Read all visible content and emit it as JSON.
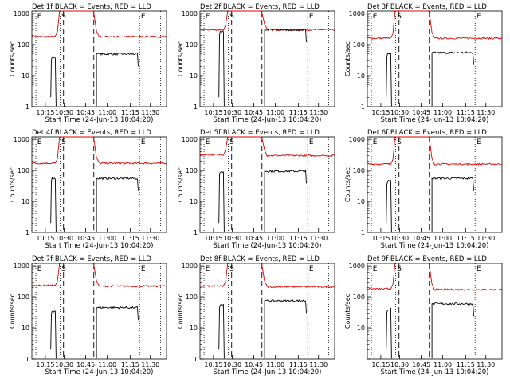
{
  "colors": {
    "events": "#000000",
    "lld": "#e00000",
    "axis": "#000000"
  },
  "common": {
    "xlabel": "Start Time (24-Jun-13 10:04:20)",
    "ylabel": "Counts/sec",
    "x_ticks": [
      "10:15",
      "10:30",
      "10:45",
      "11:00",
      "11:15",
      "11:30"
    ],
    "y_ticks": [
      "1",
      "10",
      "100",
      "1000"
    ],
    "markers": {
      "E1": "E",
      "S": "S",
      "E2": "E"
    }
  },
  "chart_data": [
    {
      "type": "line",
      "title": "Det 1f BLACK = Events, RED = LLD",
      "xlabel": "Start Time (24-Jun-13 10:04:20)",
      "ylabel": "Counts/sec",
      "y_scale": "log",
      "ylim": [
        1,
        1200
      ],
      "x_ticks": [
        "10:15",
        "10:30",
        "10:45",
        "11:00",
        "11:15",
        "11:30"
      ],
      "series": [
        {
          "name": "Events",
          "color": "#000000",
          "level_before": 40,
          "level_after": 50
        },
        {
          "name": "LLD",
          "color": "#e00000",
          "level_before": 180,
          "level_after": 180
        }
      ]
    },
    {
      "type": "line",
      "title": "Det 2f BLACK = Events, RED = LLD",
      "xlabel": "Start Time (24-Jun-13 10:04:20)",
      "ylabel": "Counts/sec",
      "y_scale": "log",
      "ylim": [
        1,
        1200
      ],
      "x_ticks": [
        "10:15",
        "10:30",
        "10:45",
        "11:00",
        "11:15",
        "11:30"
      ],
      "series": [
        {
          "name": "Events",
          "color": "#000000",
          "level_before": 250,
          "level_after": 300
        },
        {
          "name": "LLD",
          "color": "#e00000",
          "level_before": 300,
          "level_after": 300
        }
      ]
    },
    {
      "type": "line",
      "title": "Det 3f BLACK = Events, RED = LLD",
      "xlabel": "Start Time (24-Jun-13 10:04:20)",
      "ylabel": "Counts/sec",
      "y_scale": "log",
      "ylim": [
        1,
        1200
      ],
      "x_ticks": [
        "10:15",
        "10:30",
        "10:45",
        "11:00",
        "11:15",
        "11:30"
      ],
      "series": [
        {
          "name": "Events",
          "color": "#000000",
          "level_before": 50,
          "level_after": 55
        },
        {
          "name": "LLD",
          "color": "#e00000",
          "level_before": 160,
          "level_after": 160
        }
      ]
    },
    {
      "type": "line",
      "title": "Det 4f BLACK = Events, RED = LLD",
      "xlabel": "Start Time (24-Jun-13 10:04:20)",
      "ylabel": "Counts/sec",
      "y_scale": "log",
      "ylim": [
        1,
        1200
      ],
      "x_ticks": [
        "10:15",
        "10:30",
        "10:45",
        "11:00",
        "11:15",
        "11:30"
      ],
      "series": [
        {
          "name": "Events",
          "color": "#000000",
          "level_before": 55,
          "level_after": 55
        },
        {
          "name": "LLD",
          "color": "#e00000",
          "level_before": 170,
          "level_after": 170
        }
      ]
    },
    {
      "type": "line",
      "title": "Det 5f BLACK = Events, RED = LLD",
      "xlabel": "Start Time (24-Jun-13 10:04:20)",
      "ylabel": "Counts/sec",
      "y_scale": "log",
      "ylim": [
        1,
        1200
      ],
      "x_ticks": [
        "10:15",
        "10:30",
        "10:45",
        "11:00",
        "11:15",
        "11:30"
      ],
      "series": [
        {
          "name": "Events",
          "color": "#000000",
          "level_before": 90,
          "level_after": 95
        },
        {
          "name": "LLD",
          "color": "#e00000",
          "level_before": 320,
          "level_after": 300
        }
      ]
    },
    {
      "type": "line",
      "title": "Det 6f BLACK = Events, RED = LLD",
      "xlabel": "Start Time (24-Jun-13 10:04:20)",
      "ylabel": "Counts/sec",
      "y_scale": "log",
      "ylim": [
        1,
        1200
      ],
      "x_ticks": [
        "10:15",
        "10:30",
        "10:45",
        "11:00",
        "11:15",
        "11:30"
      ],
      "series": [
        {
          "name": "Events",
          "color": "#000000",
          "level_before": 45,
          "level_after": 55
        },
        {
          "name": "LLD",
          "color": "#e00000",
          "level_before": 160,
          "level_after": 160
        }
      ]
    },
    {
      "type": "line",
      "title": "Det 7f BLACK = Events, RED = LLD",
      "xlabel": "Start Time (24-Jun-13 10:04:20)",
      "ylabel": "Counts/sec",
      "y_scale": "log",
      "ylim": [
        1,
        1200
      ],
      "x_ticks": [
        "10:15",
        "10:30",
        "10:45",
        "11:00",
        "11:15",
        "11:30"
      ],
      "series": [
        {
          "name": "Events",
          "color": "#000000",
          "level_before": 35,
          "level_after": 45
        },
        {
          "name": "LLD",
          "color": "#e00000",
          "level_before": 230,
          "level_after": 220
        }
      ]
    },
    {
      "type": "line",
      "title": "Det 8f BLACK = Events, RED = LLD",
      "xlabel": "Start Time (24-Jun-13 10:04:20)",
      "ylabel": "Counts/sec",
      "y_scale": "log",
      "ylim": [
        1,
        1200
      ],
      "x_ticks": [
        "10:15",
        "10:30",
        "10:45",
        "11:00",
        "11:15",
        "11:30"
      ],
      "series": [
        {
          "name": "Events",
          "color": "#000000",
          "level_before": 55,
          "level_after": 75
        },
        {
          "name": "LLD",
          "color": "#e00000",
          "level_before": 220,
          "level_after": 210
        }
      ]
    },
    {
      "type": "line",
      "title": "Det 9f BLACK = Events, RED = LLD",
      "xlabel": "Start Time (24-Jun-13 10:04:20)",
      "ylabel": "Counts/sec",
      "y_scale": "log",
      "ylim": [
        1,
        1200
      ],
      "x_ticks": [
        "10:15",
        "10:30",
        "10:45",
        "11:00",
        "11:15",
        "11:30"
      ],
      "series": [
        {
          "name": "Events",
          "color": "#000000",
          "level_before": 40,
          "level_after": 60
        },
        {
          "name": "LLD",
          "color": "#e00000",
          "level_before": 180,
          "level_after": 170
        }
      ]
    }
  ]
}
